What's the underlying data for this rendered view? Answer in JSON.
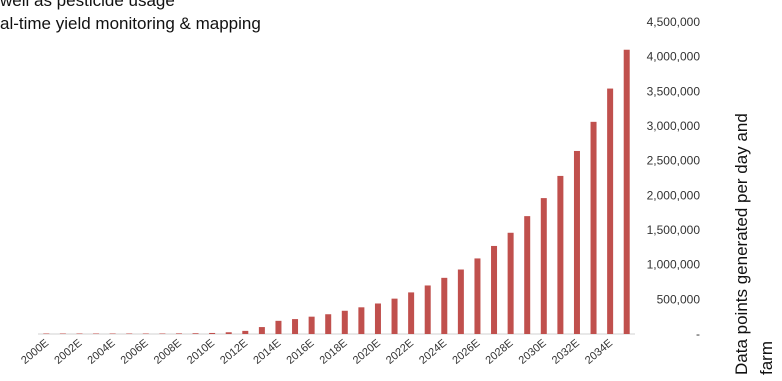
{
  "caption": {
    "line1": "well as pesticide usage",
    "line2": "al-time yield monitoring & mapping"
  },
  "chart_data": {
    "type": "bar",
    "title": "",
    "xlabel": "",
    "ylabel_lines": [
      "Data points generated per day and",
      "farm"
    ],
    "ylim": [
      0,
      4500000
    ],
    "yticks": [
      0,
      500000,
      1000000,
      1500000,
      2000000,
      2500000,
      3000000,
      3500000,
      4000000,
      4500000
    ],
    "ytick_labels": [
      "-",
      "500,000",
      "1,000,000",
      "1,500,000",
      "2,000,000",
      "2,500,000",
      "3,000,000",
      "3,500,000",
      "4,000,000",
      "4,500,000"
    ],
    "grid": false,
    "bar_color": "#c0504d",
    "categories": [
      "2000E",
      "2001E",
      "2002E",
      "2003E",
      "2004E",
      "2005E",
      "2006E",
      "2007E",
      "2008E",
      "2009E",
      "2010E",
      "2011E",
      "2012E",
      "2013E",
      "2014E",
      "2015E",
      "2016E",
      "2017E",
      "2018E",
      "2019E",
      "2020E",
      "2021E",
      "2022E",
      "2023E",
      "2024E",
      "2025E",
      "2026E",
      "2027E",
      "2028E",
      "2029E",
      "2030E",
      "2031E",
      "2032E",
      "2033E",
      "2034E",
      "2035E"
    ],
    "tick_labels_shown": [
      "2000E",
      "2002E",
      "2004E",
      "2006E",
      "2008E",
      "2010E",
      "2012E",
      "2014E",
      "2016E",
      "2018E",
      "2020E",
      "2022E",
      "2024E",
      "2026E",
      "2028E",
      "2030E",
      "2032E",
      "2034E"
    ],
    "values": [
      2000,
      2500,
      3000,
      3500,
      4000,
      5000,
      6000,
      7000,
      9000,
      11000,
      15000,
      25000,
      45000,
      100000,
      190000,
      215000,
      250000,
      285000,
      335000,
      385000,
      440000,
      510000,
      600000,
      700000,
      810000,
      930000,
      1090000,
      1270000,
      1460000,
      1700000,
      1960000,
      2280000,
      2640000,
      3060000,
      3540000,
      4100000
    ]
  }
}
